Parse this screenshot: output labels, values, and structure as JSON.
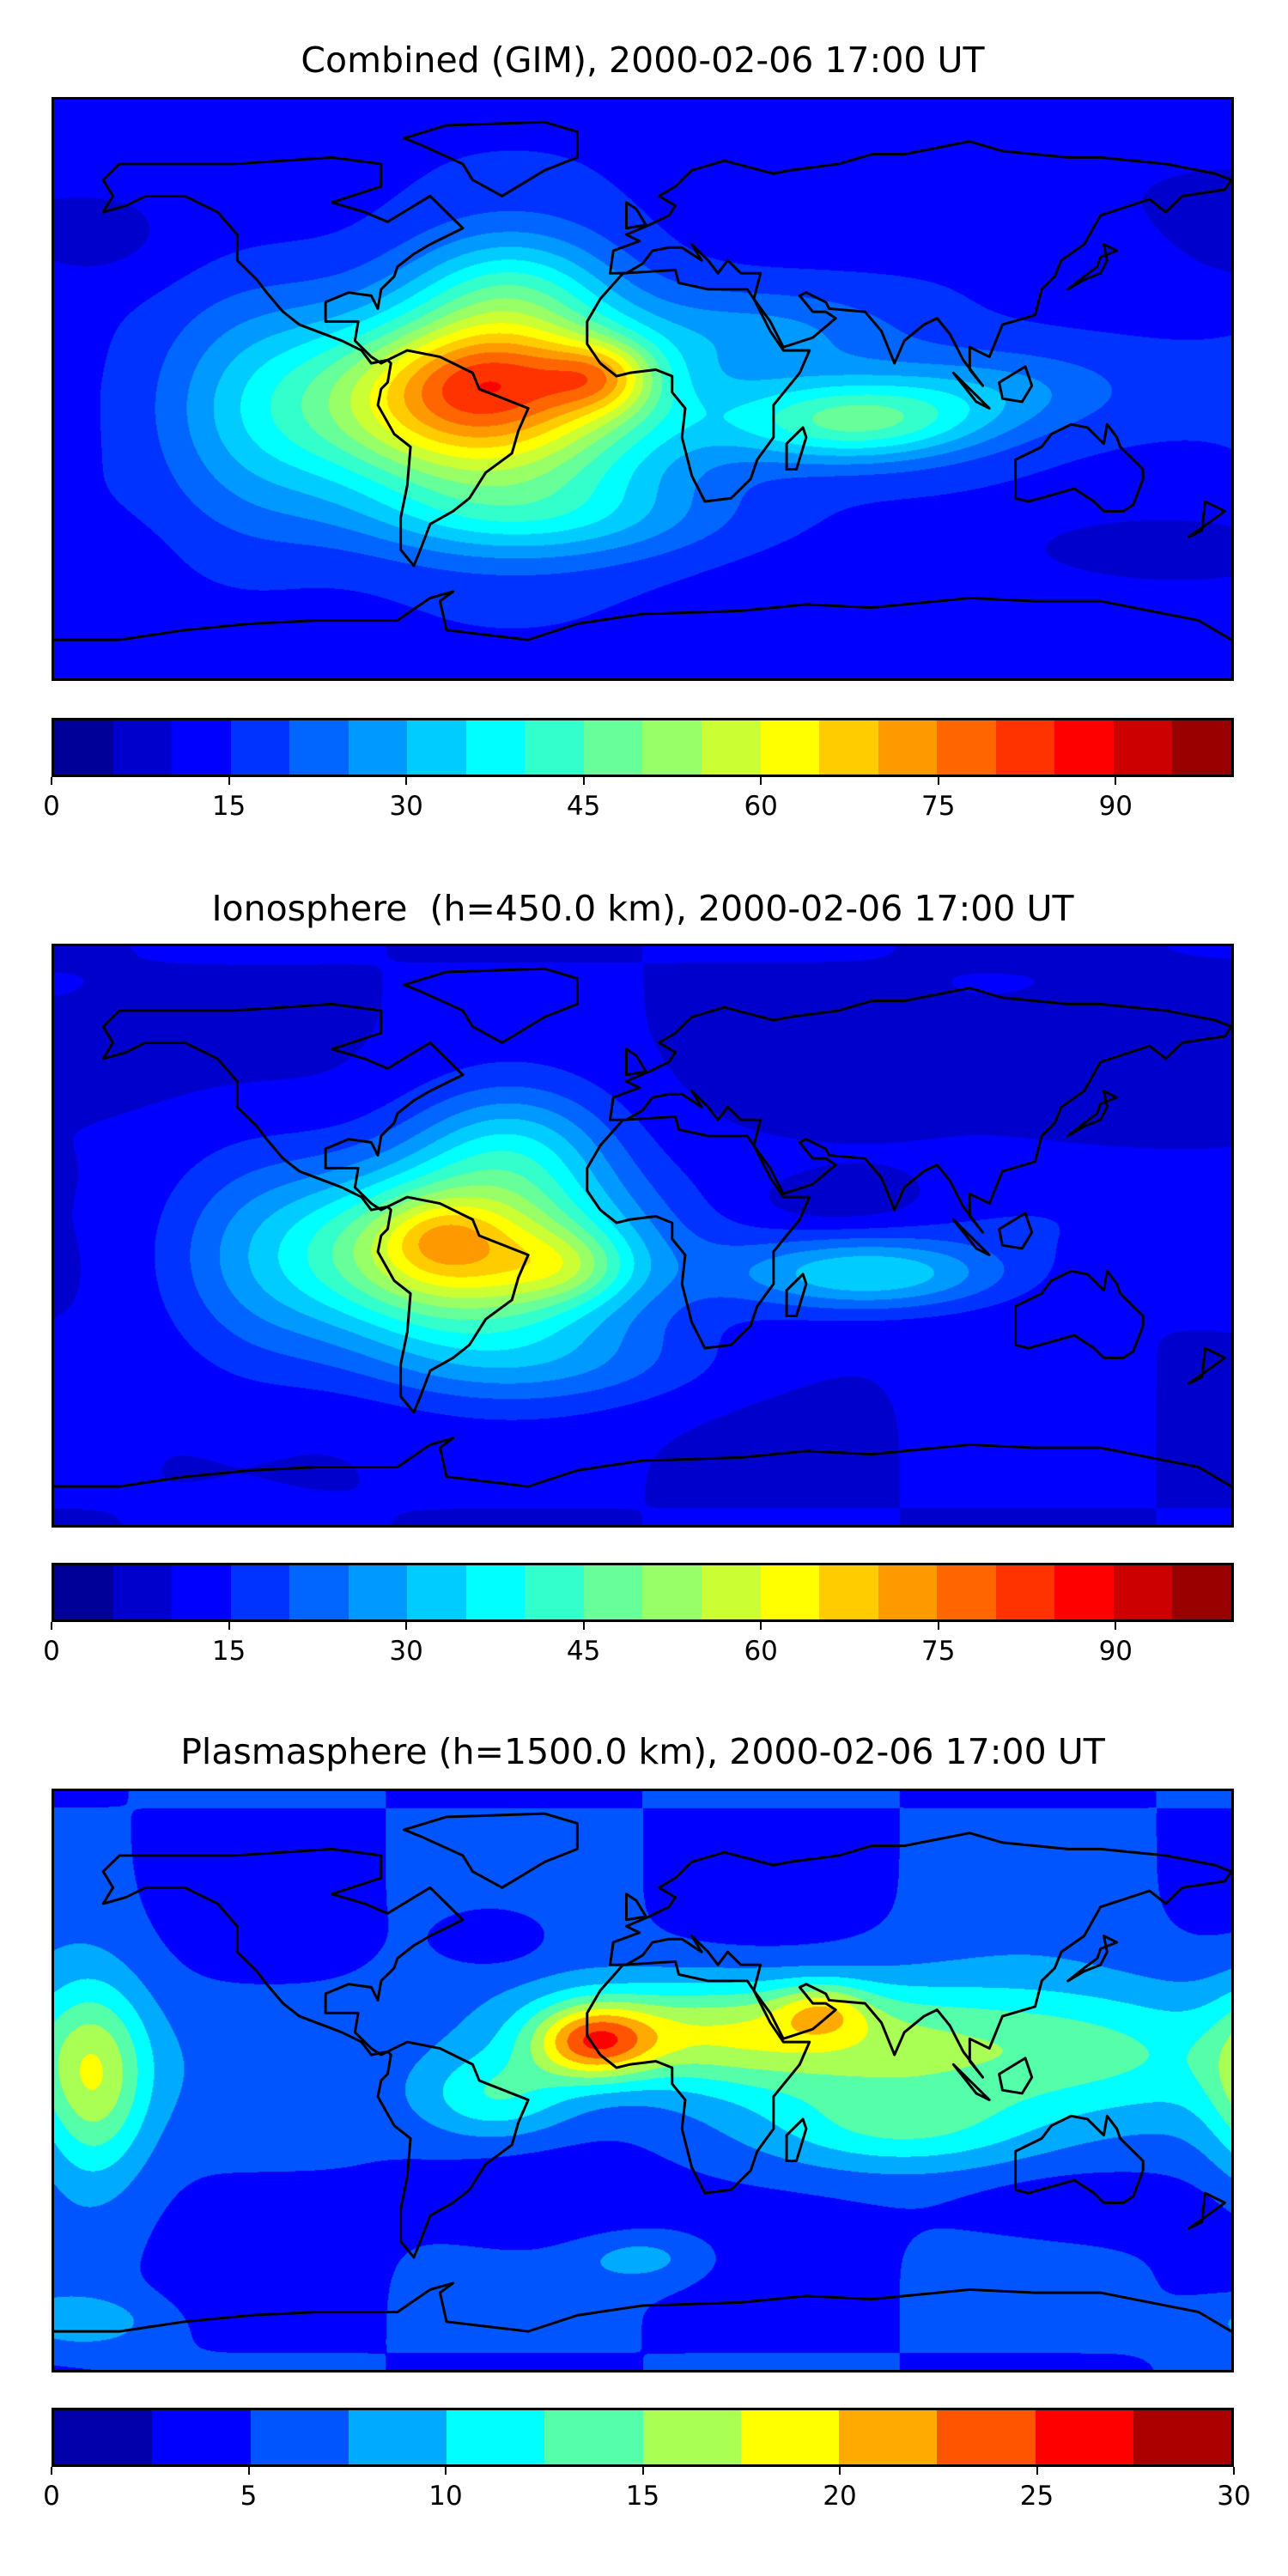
{
  "chart_data": [
    {
      "type": "heatmap",
      "title": "Combined (GIM), 2000-02-06 17:00 UT",
      "colormap": "jet",
      "levels": {
        "min": 0,
        "max": 100,
        "step": 5
      },
      "colorbar_ticks": [
        0,
        15,
        30,
        45,
        60,
        75,
        90
      ],
      "lon_range": [
        -180,
        180
      ],
      "lat_range": [
        -90,
        90
      ],
      "field_model": {
        "base": 14,
        "blobs": [
          [
            -50,
            -5,
            62,
            38,
            20
          ],
          [
            -12,
            4,
            22,
            12,
            8
          ],
          [
            -45,
            5,
            12,
            22,
            10
          ],
          [
            -40,
            30,
            20,
            22,
            14
          ],
          [
            65,
            -10,
            30,
            28,
            9
          ],
          [
            40,
            18,
            10,
            30,
            10
          ],
          [
            110,
            0,
            12,
            30,
            10
          ],
          [
            -30,
            -40,
            14,
            40,
            10
          ],
          [
            -120,
            -10,
            10,
            20,
            30
          ],
          [
            150,
            -50,
            -8,
            30,
            8
          ],
          [
            160,
            60,
            -4,
            40,
            12
          ],
          [
            -170,
            45,
            -5,
            20,
            10
          ]
        ]
      }
    },
    {
      "type": "heatmap",
      "title": "Ionosphere  (h=450.0 km), 2000-02-06 17:00 UT",
      "colormap": "jet",
      "levels": {
        "min": 0,
        "max": 100,
        "step": 5
      },
      "colorbar_ticks": [
        0,
        15,
        30,
        45,
        60,
        75,
        90
      ],
      "lon_range": [
        -180,
        180
      ],
      "lat_range": [
        -90,
        90
      ],
      "field_model": {
        "base": 10,
        "blobs": [
          [
            -55,
            -6,
            56,
            36,
            19
          ],
          [
            -62,
            0,
            10,
            12,
            8
          ],
          [
            -22,
            -10,
            12,
            14,
            8
          ],
          [
            -40,
            28,
            18,
            22,
            14
          ],
          [
            70,
            -12,
            24,
            30,
            8
          ],
          [
            -30,
            -40,
            10,
            40,
            10
          ],
          [
            -120,
            -10,
            8,
            20,
            30
          ],
          [
            120,
            5,
            6,
            30,
            10
          ],
          [
            60,
            10,
            -5,
            20,
            6
          ],
          [
            140,
            55,
            -4,
            40,
            12
          ]
        ]
      }
    },
    {
      "type": "heatmap",
      "title": "Plasmasphere (h=1500.0 km), 2000-02-06 17:00 UT",
      "colormap": "jet",
      "levels": {
        "min": 0,
        "max": 30,
        "step": 2.5
      },
      "colorbar_ticks": [
        0,
        5,
        10,
        15,
        20,
        25,
        30
      ],
      "lon_range": [
        -180,
        180
      ],
      "lat_range": [
        -90,
        90
      ],
      "field_model": {
        "base": 5,
        "blobs": [
          [
            -15,
            12,
            13,
            13,
            8
          ],
          [
            20,
            15,
            11,
            45,
            12
          ],
          [
            55,
            22,
            6,
            10,
            6
          ],
          [
            120,
            8,
            10,
            45,
            16
          ],
          [
            -168,
            0,
            11,
            12,
            22
          ],
          [
            -45,
            -5,
            8,
            18,
            10
          ],
          [
            80,
            -15,
            6,
            30,
            10
          ],
          [
            -30,
            -40,
            -3,
            25,
            12
          ],
          [
            130,
            -40,
            -3,
            25,
            8
          ],
          [
            -45,
            45,
            -3,
            12,
            7
          ],
          [
            0,
            -55,
            4,
            15,
            6
          ],
          [
            -170,
            -75,
            4,
            15,
            6
          ]
        ]
      }
    }
  ]
}
